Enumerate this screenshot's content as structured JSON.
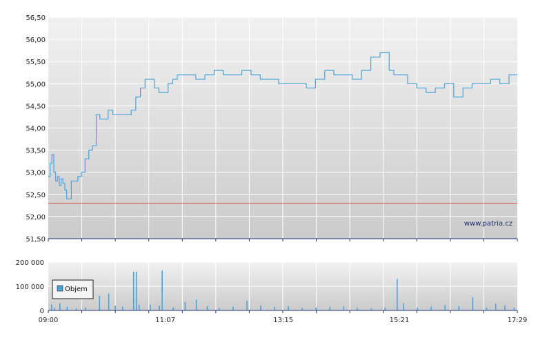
{
  "watermark": "www.patria.cz",
  "colors": {
    "price_line": "#4aa3d6",
    "reference_line": "#dd4444",
    "volume_bar": "#4aa3d6",
    "grid": "#ffffff",
    "axis": "#1f2f7a"
  },
  "chart_data": [
    {
      "type": "line",
      "title": "",
      "xlabel": "",
      "ylabel": "",
      "x_ticks": [
        "09:00",
        "11:07",
        "13:15",
        "15:21",
        "17:29"
      ],
      "y_ticks": [
        "56,50",
        "56,00",
        "55,50",
        "55,00",
        "54,50",
        "54,00",
        "53,50",
        "53,00",
        "52,50",
        "52,00",
        "51,50"
      ],
      "ylim": [
        51.5,
        56.5
      ],
      "grid": true,
      "reference_line": 52.3,
      "series": [
        {
          "x": [
            "09:00",
            "09:02",
            "09:04",
            "09:06",
            "09:08",
            "09:10",
            "09:12",
            "09:14",
            "09:16",
            "09:18",
            "09:20",
            "09:22",
            "09:25",
            "09:28",
            "09:32",
            "09:36",
            "09:40",
            "09:44",
            "09:48",
            "09:52",
            "09:56",
            "10:00",
            "10:05",
            "10:10",
            "10:15",
            "10:20",
            "10:25",
            "10:30",
            "10:35",
            "10:40",
            "10:45",
            "10:50",
            "10:55",
            "11:00",
            "11:05",
            "11:10",
            "11:15",
            "11:20",
            "11:30",
            "11:40",
            "11:50",
            "12:00",
            "12:10",
            "12:20",
            "12:30",
            "12:40",
            "12:50",
            "13:00",
            "13:10",
            "13:20",
            "13:30",
            "13:40",
            "13:50",
            "14:00",
            "14:10",
            "14:20",
            "14:30",
            "14:40",
            "14:50",
            "15:00",
            "15:10",
            "15:15",
            "15:20",
            "15:25",
            "15:30",
            "15:40",
            "15:50",
            "16:00",
            "16:10",
            "16:20",
            "16:30",
            "16:40",
            "16:50",
            "17:00",
            "17:10",
            "17:20",
            "17:29"
          ],
          "y": [
            52.9,
            53.2,
            53.4,
            53.0,
            52.8,
            52.9,
            52.7,
            52.85,
            52.75,
            52.6,
            52.4,
            52.4,
            52.8,
            52.8,
            52.9,
            53.0,
            53.3,
            53.5,
            53.6,
            54.3,
            54.2,
            54.2,
            54.4,
            54.3,
            54.3,
            54.3,
            54.3,
            54.4,
            54.7,
            54.9,
            55.1,
            55.1,
            54.9,
            54.8,
            54.8,
            55.0,
            55.1,
            55.2,
            55.2,
            55.1,
            55.2,
            55.3,
            55.2,
            55.2,
            55.3,
            55.2,
            55.1,
            55.1,
            55.0,
            55.0,
            55.0,
            54.9,
            55.1,
            55.3,
            55.2,
            55.2,
            55.1,
            55.3,
            55.6,
            55.7,
            55.3,
            55.2,
            55.2,
            55.2,
            55.0,
            54.9,
            54.8,
            54.9,
            55.0,
            54.7,
            54.9,
            55.0,
            55.0,
            55.1,
            55.0,
            55.2,
            55.2
          ],
          "y_values_text": ""
        }
      ]
    },
    {
      "type": "bar",
      "title": "",
      "xlabel": "",
      "ylabel": "",
      "x_ticks": [
        "09:00",
        "11:07",
        "13:15",
        "15:21",
        "17:29"
      ],
      "y_ticks": [
        "200 000",
        "100 000",
        "0"
      ],
      "ylim": [
        0,
        200000
      ],
      "grid": true,
      "legend": {
        "placement": "left",
        "entries": [
          "Objem"
        ]
      },
      "series": [
        {
          "name": "Objem",
          "x": [
            "09:03",
            "09:06",
            "09:12",
            "09:20",
            "09:30",
            "09:40",
            "09:55",
            "10:05",
            "10:12",
            "10:20",
            "10:32",
            "10:35",
            "10:38",
            "10:50",
            "11:00",
            "11:03",
            "11:15",
            "11:28",
            "11:40",
            "11:52",
            "12:05",
            "12:20",
            "12:35",
            "12:50",
            "13:05",
            "13:20",
            "13:35",
            "13:50",
            "14:05",
            "14:20",
            "14:35",
            "14:50",
            "15:05",
            "15:18",
            "15:25",
            "15:40",
            "15:55",
            "16:10",
            "16:25",
            "16:40",
            "16:55",
            "17:05",
            "17:15",
            "17:25"
          ],
          "values": [
            25000,
            10000,
            30000,
            15000,
            8000,
            12000,
            60000,
            70000,
            20000,
            15000,
            160000,
            160000,
            25000,
            25000,
            20000,
            165000,
            12000,
            35000,
            45000,
            18000,
            10000,
            15000,
            40000,
            20000,
            15000,
            18000,
            10000,
            12000,
            14000,
            16000,
            10000,
            8000,
            12000,
            130000,
            30000,
            12000,
            15000,
            22000,
            18000,
            55000,
            12000,
            28000,
            20000,
            10000
          ]
        }
      ]
    }
  ]
}
